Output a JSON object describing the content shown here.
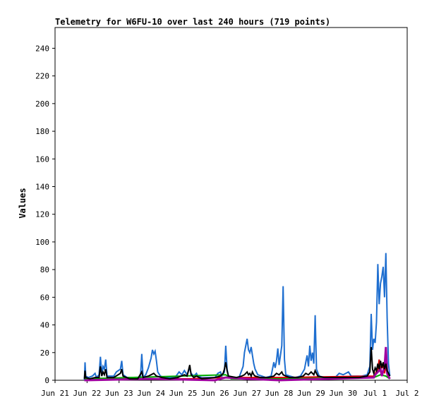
{
  "chart_data": {
    "type": "line",
    "title": "Telemetry for W6FU-10 over last 240 hours (719 points)",
    "ylabel": "Values",
    "xlabel": "",
    "ylim": [
      0,
      255
    ],
    "xlim": [
      "2023-06-21T00:00",
      "2023-07-02T00:00"
    ],
    "grid": false,
    "legend": "none",
    "y_ticks": [
      0,
      20,
      40,
      60,
      80,
      100,
      120,
      140,
      160,
      180,
      200,
      220,
      240
    ],
    "x_ticks": [
      {
        "x": "2023-06-21T00:00",
        "label": "Jun 21"
      },
      {
        "x": "2023-06-22T00:00",
        "label": "Jun 22"
      },
      {
        "x": "2023-06-23T00:00",
        "label": "Jun 23"
      },
      {
        "x": "2023-06-24T00:00",
        "label": "Jun 24"
      },
      {
        "x": "2023-06-25T00:00",
        "label": "Jun 25"
      },
      {
        "x": "2023-06-26T00:00",
        "label": "Jun 26"
      },
      {
        "x": "2023-06-27T00:00",
        "label": "Jun 27"
      },
      {
        "x": "2023-06-28T00:00",
        "label": "Jun 28"
      },
      {
        "x": "2023-06-29T00:00",
        "label": "Jun 29"
      },
      {
        "x": "2023-06-30T00:00",
        "label": "Jun 30"
      },
      {
        "x": "2023-07-01T00:00",
        "label": "Jul 1"
      },
      {
        "x": "2023-07-02T00:00",
        "label": "Jul 2"
      }
    ],
    "series": [
      {
        "color": "#1f6fd0",
        "width": 2,
        "points": [
          [
            "2023-06-21T22:00",
            0
          ],
          [
            "2023-06-21T22:30",
            13
          ],
          [
            "2023-06-21T23:00",
            3
          ],
          [
            "2023-06-22T01:00",
            2
          ],
          [
            "2023-06-22T04:00",
            3
          ],
          [
            "2023-06-22T06:00",
            5
          ],
          [
            "2023-06-22T07:00",
            2
          ],
          [
            "2023-06-22T09:00",
            4
          ],
          [
            "2023-06-22T10:00",
            17
          ],
          [
            "2023-06-22T11:00",
            4
          ],
          [
            "2023-06-22T12:00",
            10
          ],
          [
            "2023-06-22T13:00",
            8
          ],
          [
            "2023-06-22T14:00",
            15
          ],
          [
            "2023-06-22T15:00",
            3
          ],
          [
            "2023-06-22T20:00",
            3
          ],
          [
            "2023-06-22T22:00",
            6
          ],
          [
            "2023-06-23T01:00",
            8
          ],
          [
            "2023-06-23T02:00",
            14
          ],
          [
            "2023-06-23T03:00",
            4
          ],
          [
            "2023-06-23T06:00",
            2
          ],
          [
            "2023-06-23T10:00",
            2
          ],
          [
            "2023-06-23T14:00",
            2
          ],
          [
            "2023-06-23T16:00",
            2
          ],
          [
            "2023-06-23T17:00",
            19
          ],
          [
            "2023-06-23T18:00",
            2
          ],
          [
            "2023-06-23T20:00",
            4
          ],
          [
            "2023-06-23T22:00",
            9
          ],
          [
            "2023-06-24T00:00",
            16
          ],
          [
            "2023-06-24T01:00",
            22
          ],
          [
            "2023-06-24T02:00",
            19
          ],
          [
            "2023-06-24T03:00",
            21
          ],
          [
            "2023-06-24T04:00",
            14
          ],
          [
            "2023-06-24T05:00",
            6
          ],
          [
            "2023-06-24T07:00",
            3
          ],
          [
            "2023-06-24T10:00",
            2
          ],
          [
            "2023-06-24T14:00",
            2
          ],
          [
            "2023-06-24T18:00",
            2
          ],
          [
            "2023-06-24T21:00",
            6
          ],
          [
            "2023-06-24T23:00",
            4
          ],
          [
            "2023-06-25T01:00",
            7
          ],
          [
            "2023-06-25T03:00",
            4
          ],
          [
            "2023-06-25T05:00",
            9
          ],
          [
            "2023-06-25T06:00",
            5
          ],
          [
            "2023-06-25T08:00",
            3
          ],
          [
            "2023-06-25T10:00",
            5
          ],
          [
            "2023-06-25T11:00",
            3
          ],
          [
            "2023-06-25T14:00",
            2
          ],
          [
            "2023-06-25T20:00",
            2
          ],
          [
            "2023-06-26T00:00",
            2
          ],
          [
            "2023-06-26T02:00",
            5
          ],
          [
            "2023-06-26T04:00",
            6
          ],
          [
            "2023-06-26T05:00",
            3
          ],
          [
            "2023-06-26T07:00",
            6
          ],
          [
            "2023-06-26T08:00",
            25
          ],
          [
            "2023-06-26T09:00",
            8
          ],
          [
            "2023-06-26T10:00",
            3
          ],
          [
            "2023-06-26T14:00",
            2
          ],
          [
            "2023-06-26T18:00",
            2
          ],
          [
            "2023-06-26T21:00",
            10
          ],
          [
            "2023-06-26T22:00",
            20
          ],
          [
            "2023-06-26T23:00",
            25
          ],
          [
            "2023-06-27T00:00",
            30
          ],
          [
            "2023-06-27T01:00",
            22
          ],
          [
            "2023-06-27T02:00",
            20
          ],
          [
            "2023-06-27T03:00",
            24
          ],
          [
            "2023-06-27T04:00",
            18
          ],
          [
            "2023-06-27T05:00",
            12
          ],
          [
            "2023-06-27T06:00",
            8
          ],
          [
            "2023-06-27T08:00",
            4
          ],
          [
            "2023-06-27T11:00",
            3
          ],
          [
            "2023-06-27T14:00",
            2
          ],
          [
            "2023-06-27T18:00",
            3
          ],
          [
            "2023-06-27T20:00",
            13
          ],
          [
            "2023-06-27T21:00",
            9
          ],
          [
            "2023-06-27T22:00",
            14
          ],
          [
            "2023-06-27T23:00",
            23
          ],
          [
            "2023-06-28T00:00",
            11
          ],
          [
            "2023-06-28T01:00",
            18
          ],
          [
            "2023-06-28T02:00",
            25
          ],
          [
            "2023-06-28T03:00",
            68
          ],
          [
            "2023-06-28T04:00",
            15
          ],
          [
            "2023-06-28T05:00",
            4
          ],
          [
            "2023-06-28T08:00",
            3
          ],
          [
            "2023-06-28T12:00",
            2
          ],
          [
            "2023-06-28T16:00",
            3
          ],
          [
            "2023-06-28T19:00",
            8
          ],
          [
            "2023-06-28T20:00",
            13
          ],
          [
            "2023-06-28T21:00",
            18
          ],
          [
            "2023-06-28T22:00",
            10
          ],
          [
            "2023-06-28T23:00",
            25
          ],
          [
            "2023-06-29T00:00",
            14
          ],
          [
            "2023-06-29T01:00",
            20
          ],
          [
            "2023-06-29T02:00",
            12
          ],
          [
            "2023-06-29T03:00",
            47
          ],
          [
            "2023-06-29T04:00",
            8
          ],
          [
            "2023-06-29T06:00",
            3
          ],
          [
            "2023-06-29T10:00",
            2
          ],
          [
            "2023-06-29T14:00",
            2
          ],
          [
            "2023-06-29T18:00",
            2
          ],
          [
            "2023-06-29T21:00",
            5
          ],
          [
            "2023-06-30T00:00",
            4
          ],
          [
            "2023-06-30T04:00",
            6
          ],
          [
            "2023-06-30T06:00",
            3
          ],
          [
            "2023-06-30T10:00",
            3
          ],
          [
            "2023-06-30T14:00",
            3
          ],
          [
            "2023-06-30T18:00",
            4
          ],
          [
            "2023-06-30T20:00",
            10
          ],
          [
            "2023-06-30T21:00",
            48
          ],
          [
            "2023-06-30T22:00",
            22
          ],
          [
            "2023-06-30T23:00",
            30
          ],
          [
            "2023-07-01T00:00",
            27
          ],
          [
            "2023-07-01T01:00",
            42
          ],
          [
            "2023-07-01T02:00",
            84
          ],
          [
            "2023-07-01T03:00",
            55
          ],
          [
            "2023-07-01T04:00",
            70
          ],
          [
            "2023-07-01T05:00",
            75
          ],
          [
            "2023-07-01T06:00",
            82
          ],
          [
            "2023-07-01T07:00",
            60
          ],
          [
            "2023-07-01T08:00",
            92
          ],
          [
            "2023-07-01T09:00",
            45
          ],
          [
            "2023-07-01T10:00",
            12
          ],
          [
            "2023-07-01T11:00",
            3
          ]
        ]
      },
      {
        "color": "#dd0000",
        "width": 2,
        "points": [
          [
            "2023-06-21T22:00",
            1
          ],
          [
            "2023-06-25T05:00",
            1
          ],
          [
            "2023-06-26T08:00",
            2
          ],
          [
            "2023-06-28T03:00",
            2
          ],
          [
            "2023-06-30T23:00",
            3
          ],
          [
            "2023-07-01T02:00",
            8
          ],
          [
            "2023-07-01T03:00",
            15
          ],
          [
            "2023-07-01T04:00",
            6
          ],
          [
            "2023-07-01T05:00",
            12
          ],
          [
            "2023-07-01T06:00",
            9
          ],
          [
            "2023-07-01T07:00",
            5
          ],
          [
            "2023-07-01T08:00",
            11
          ],
          [
            "2023-07-01T09:00",
            4
          ],
          [
            "2023-07-01T11:00",
            1
          ]
        ]
      },
      {
        "color": "#00aa00",
        "width": 2,
        "points": [
          [
            "2023-06-21T22:00",
            1
          ],
          [
            "2023-06-26T08:00",
            4
          ],
          [
            "2023-06-26T12:00",
            1
          ],
          [
            "2023-06-28T03:00",
            1
          ],
          [
            "2023-06-30T23:00",
            2
          ],
          [
            "2023-07-01T04:00",
            4
          ],
          [
            "2023-07-01T08:00",
            3
          ],
          [
            "2023-07-01T11:00",
            1
          ]
        ]
      },
      {
        "color": "#a000a0",
        "width": 3,
        "points": [
          [
            "2023-06-21T22:00",
            0
          ],
          [
            "2023-06-24T00:00",
            1
          ],
          [
            "2023-06-26T00:00",
            0
          ],
          [
            "2023-06-26T08:00",
            2
          ],
          [
            "2023-06-27T00:00",
            1
          ],
          [
            "2023-06-28T00:00",
            0
          ],
          [
            "2023-06-30T23:00",
            2
          ],
          [
            "2023-07-01T00:00",
            4
          ],
          [
            "2023-07-01T02:00",
            6
          ],
          [
            "2023-07-01T04:00",
            8
          ],
          [
            "2023-07-01T05:00",
            3
          ],
          [
            "2023-07-01T06:00",
            7
          ],
          [
            "2023-07-01T07:00",
            9
          ],
          [
            "2023-07-01T08:00",
            24
          ],
          [
            "2023-07-01T09:00",
            5
          ],
          [
            "2023-07-01T11:00",
            1
          ]
        ]
      },
      {
        "color": "#000000",
        "width": 2,
        "points": [
          [
            "2023-06-21T22:00",
            1
          ],
          [
            "2023-06-21T22:30",
            7
          ],
          [
            "2023-06-21T23:00",
            2
          ],
          [
            "2023-06-22T02:00",
            1
          ],
          [
            "2023-06-22T06:00",
            2
          ],
          [
            "2023-06-22T09:00",
            2
          ],
          [
            "2023-06-22T10:00",
            10
          ],
          [
            "2023-06-22T11:00",
            3
          ],
          [
            "2023-06-22T12:00",
            6
          ],
          [
            "2023-06-22T13:00",
            4
          ],
          [
            "2023-06-22T14:00",
            8
          ],
          [
            "2023-06-22T15:00",
            2
          ],
          [
            "2023-06-22T20:00",
            2
          ],
          [
            "2023-06-23T01:00",
            5
          ],
          [
            "2023-06-23T02:00",
            8
          ],
          [
            "2023-06-23T03:00",
            3
          ],
          [
            "2023-06-23T08:00",
            1
          ],
          [
            "2023-06-23T14:00",
            1
          ],
          [
            "2023-06-23T17:00",
            6
          ],
          [
            "2023-06-23T18:00",
            2
          ],
          [
            "2023-06-23T22:00",
            3
          ],
          [
            "2023-06-24T00:00",
            4
          ],
          [
            "2023-06-24T02:00",
            5
          ],
          [
            "2023-06-24T04:00",
            3
          ],
          [
            "2023-06-24T08:00",
            2
          ],
          [
            "2023-06-24T14:00",
            1
          ],
          [
            "2023-06-24T20:00",
            2
          ],
          [
            "2023-06-25T01:00",
            4
          ],
          [
            "2023-06-25T03:00",
            3
          ],
          [
            "2023-06-25T05:00",
            11
          ],
          [
            "2023-06-25T06:00",
            4
          ],
          [
            "2023-06-25T08:00",
            2
          ],
          [
            "2023-06-25T10:00",
            3
          ],
          [
            "2023-06-25T14:00",
            1
          ],
          [
            "2023-06-26T00:00",
            2
          ],
          [
            "2023-06-26T04:00",
            3
          ],
          [
            "2023-06-26T06:00",
            5
          ],
          [
            "2023-06-26T07:00",
            8
          ],
          [
            "2023-06-26T08:00",
            13
          ],
          [
            "2023-06-26T09:00",
            7
          ],
          [
            "2023-06-26T10:00",
            3
          ],
          [
            "2023-06-26T16:00",
            2
          ],
          [
            "2023-06-26T20:00",
            3
          ],
          [
            "2023-06-26T22:00",
            4
          ],
          [
            "2023-06-27T00:00",
            6
          ],
          [
            "2023-06-27T01:00",
            4
          ],
          [
            "2023-06-27T02:00",
            5
          ],
          [
            "2023-06-27T03:00",
            3
          ],
          [
            "2023-06-27T04:00",
            6
          ],
          [
            "2023-06-27T05:00",
            4
          ],
          [
            "2023-06-27T06:00",
            3
          ],
          [
            "2023-06-27T10:00",
            2
          ],
          [
            "2023-06-27T16:00",
            2
          ],
          [
            "2023-06-27T20:00",
            3
          ],
          [
            "2023-06-27T22:00",
            5
          ],
          [
            "2023-06-28T00:00",
            4
          ],
          [
            "2023-06-28T02:00",
            6
          ],
          [
            "2023-06-28T03:00",
            4
          ],
          [
            "2023-06-28T05:00",
            3
          ],
          [
            "2023-06-28T08:00",
            2
          ],
          [
            "2023-06-28T14:00",
            2
          ],
          [
            "2023-06-28T18:00",
            3
          ],
          [
            "2023-06-28T20:00",
            5
          ],
          [
            "2023-06-28T22:00",
            4
          ],
          [
            "2023-06-29T00:00",
            6
          ],
          [
            "2023-06-29T02:00",
            4
          ],
          [
            "2023-06-29T03:00",
            7
          ],
          [
            "2023-06-29T05:00",
            3
          ],
          [
            "2023-06-29T10:00",
            2
          ],
          [
            "2023-06-29T16:00",
            2
          ],
          [
            "2023-06-30T00:00",
            2
          ],
          [
            "2023-06-30T06:00",
            2
          ],
          [
            "2023-06-30T12:00",
            2
          ],
          [
            "2023-06-30T18:00",
            3
          ],
          [
            "2023-06-30T20:00",
            6
          ],
          [
            "2023-06-30T21:00",
            24
          ],
          [
            "2023-06-30T22:00",
            8
          ],
          [
            "2023-06-30T23:00",
            5
          ],
          [
            "2023-07-01T00:00",
            9
          ],
          [
            "2023-07-01T01:00",
            7
          ],
          [
            "2023-07-01T02:00",
            12
          ],
          [
            "2023-07-01T03:00",
            8
          ],
          [
            "2023-07-01T04:00",
            14
          ],
          [
            "2023-07-01T05:00",
            9
          ],
          [
            "2023-07-01T06:00",
            13
          ],
          [
            "2023-07-01T07:00",
            8
          ],
          [
            "2023-07-01T08:00",
            12
          ],
          [
            "2023-07-01T09:00",
            7
          ],
          [
            "2023-07-01T10:00",
            5
          ],
          [
            "2023-07-01T11:00",
            3
          ]
        ]
      }
    ]
  }
}
